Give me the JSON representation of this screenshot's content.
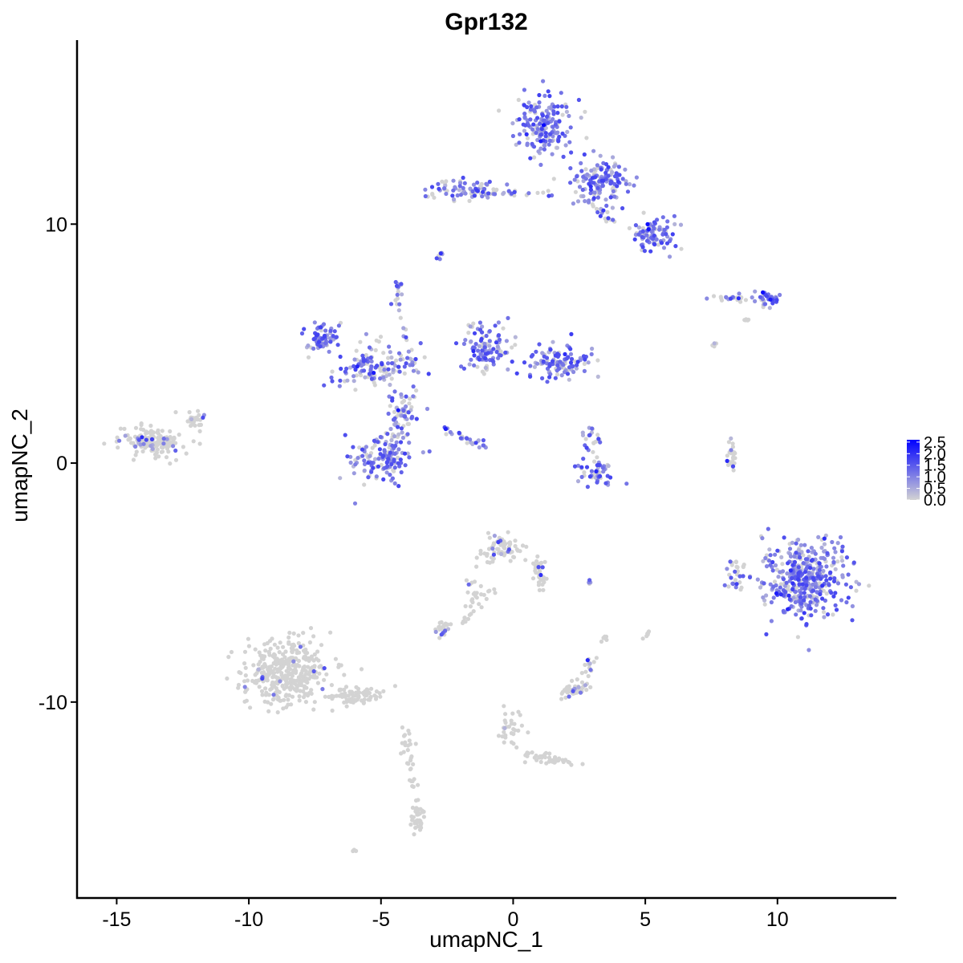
{
  "chart_data": {
    "type": "scatter",
    "title": "Gpr132",
    "xlabel": "umapNC_1",
    "ylabel": "umapNC_2",
    "xlim": [
      -16.5,
      14.5
    ],
    "ylim": [
      -18.2,
      17.7
    ],
    "x_ticks": [
      -15,
      -10,
      -5,
      0,
      5,
      10
    ],
    "x_tick_labels": [
      "-15",
      "-10",
      "-5",
      "0",
      "5",
      "10"
    ],
    "y_ticks": [
      -10,
      0,
      10
    ],
    "y_tick_labels": [
      "-10",
      "0",
      "10"
    ],
    "color_scale": {
      "low_color": "#d3d3d3",
      "high_color": "#0000ff",
      "range": [
        0,
        2.6
      ],
      "breaks": [
        0.0,
        0.5,
        1.0,
        1.5,
        2.0,
        2.5
      ],
      "break_labels": [
        "0.0",
        "0.5",
        "1.0",
        "1.5",
        "2.0",
        "2.5"
      ]
    },
    "legend_position": "right",
    "grid": false,
    "clusters": [
      {
        "cx": 1.2,
        "cy": 14.2,
        "sx": 0.9,
        "sy": 1.1,
        "n": 170,
        "expr": 0.85
      },
      {
        "cx": 3.3,
        "cy": 11.8,
        "sx": 0.9,
        "sy": 0.8,
        "n": 140,
        "expr": 0.8
      },
      {
        "cx": 5.3,
        "cy": 9.6,
        "sx": 0.7,
        "sy": 0.6,
        "n": 90,
        "expr": 0.8
      },
      {
        "cx": -1.8,
        "cy": 11.4,
        "sx": 1.3,
        "sy": 0.4,
        "n": 70,
        "expr": 0.55
      },
      {
        "cx": -2.7,
        "cy": 8.7,
        "sx": 0.15,
        "sy": 0.2,
        "n": 8,
        "expr": 0.6
      },
      {
        "cx": -7.3,
        "cy": 5.2,
        "sx": 0.5,
        "sy": 0.6,
        "n": 70,
        "expr": 0.85
      },
      {
        "cx": -5.2,
        "cy": 4.0,
        "sx": 1.2,
        "sy": 0.8,
        "n": 130,
        "expr": 0.7
      },
      {
        "cx": -1.0,
        "cy": 4.9,
        "sx": 0.8,
        "sy": 0.9,
        "n": 110,
        "expr": 0.8
      },
      {
        "cx": 1.8,
        "cy": 4.2,
        "sx": 1.0,
        "sy": 0.6,
        "n": 110,
        "expr": 0.8
      },
      {
        "cx": -5.0,
        "cy": 0.3,
        "sx": 1.0,
        "sy": 0.8,
        "n": 150,
        "expr": 0.8
      },
      {
        "cx": -4.1,
        "cy": 2.2,
        "sx": 0.5,
        "sy": 0.7,
        "n": 60,
        "expr": 0.75
      },
      {
        "cx": -4.3,
        "cy": 7.4,
        "sx": 0.15,
        "sy": 0.3,
        "n": 10,
        "expr": 0.8
      },
      {
        "cx": 3.2,
        "cy": -0.3,
        "sx": 0.7,
        "sy": 0.5,
        "n": 50,
        "expr": 0.7
      },
      {
        "cx": 3.0,
        "cy": 1.0,
        "sx": 0.3,
        "sy": 0.5,
        "n": 20,
        "expr": 0.6
      },
      {
        "cx": 8.1,
        "cy": 6.9,
        "sx": 0.6,
        "sy": 0.12,
        "n": 22,
        "expr": 0.4
      },
      {
        "cx": 9.6,
        "cy": 6.9,
        "sx": 0.35,
        "sy": 0.25,
        "n": 35,
        "expr": 0.8
      },
      {
        "cx": 11.0,
        "cy": -4.8,
        "sx": 1.3,
        "sy": 1.3,
        "n": 420,
        "expr": 0.8
      },
      {
        "cx": 8.4,
        "cy": -4.6,
        "sx": 0.3,
        "sy": 0.6,
        "n": 30,
        "expr": 0.35
      },
      {
        "cx": 8.3,
        "cy": 0.2,
        "sx": 0.15,
        "sy": 0.6,
        "n": 25,
        "expr": 0.25
      },
      {
        "cx": -13.6,
        "cy": 0.9,
        "sx": 1.0,
        "sy": 0.55,
        "n": 150,
        "expr": 0.08
      },
      {
        "cx": -12.0,
        "cy": 1.8,
        "sx": 0.4,
        "sy": 0.3,
        "n": 25,
        "expr": 0.05
      },
      {
        "cx": -8.5,
        "cy": -8.8,
        "sx": 1.3,
        "sy": 1.2,
        "n": 380,
        "expr": 0.02
      },
      {
        "cx": -6.0,
        "cy": -9.8,
        "sx": 1.0,
        "sy": 0.35,
        "n": 80,
        "expr": 0.0
      },
      {
        "cx": -3.6,
        "cy": -14.8,
        "sx": 0.2,
        "sy": 0.45,
        "n": 40,
        "expr": 0.0
      },
      {
        "cx": -4.0,
        "cy": -11.8,
        "sx": 0.2,
        "sy": 0.7,
        "n": 20,
        "expr": 0.0
      },
      {
        "cx": -0.4,
        "cy": -3.6,
        "sx": 0.6,
        "sy": 0.5,
        "n": 70,
        "expr": 0.12
      },
      {
        "cx": 1.0,
        "cy": -4.6,
        "sx": 0.25,
        "sy": 0.6,
        "n": 35,
        "expr": 0.1
      },
      {
        "cx": -2.6,
        "cy": -6.9,
        "sx": 0.35,
        "sy": 0.25,
        "n": 25,
        "expr": 0.1
      },
      {
        "cx": -1.5,
        "cy": -5.5,
        "sx": 0.3,
        "sy": 0.6,
        "n": 18,
        "expr": 0.05
      },
      {
        "cx": 2.3,
        "cy": -9.5,
        "sx": 0.5,
        "sy": 0.25,
        "n": 45,
        "expr": 0.2
      },
      {
        "cx": 2.8,
        "cy": -8.5,
        "sx": 0.25,
        "sy": 0.3,
        "n": 15,
        "expr": 0.15
      },
      {
        "cx": -0.1,
        "cy": -11.0,
        "sx": 0.4,
        "sy": 0.9,
        "n": 30,
        "expr": 0.04
      },
      {
        "cx": 1.5,
        "cy": -12.4,
        "sx": 0.8,
        "sy": 0.3,
        "n": 25,
        "expr": 0.05
      },
      {
        "cx": 5.0,
        "cy": -7.2,
        "sx": 0.12,
        "sy": 0.12,
        "n": 6,
        "expr": 0.05
      },
      {
        "cx": 3.4,
        "cy": -7.3,
        "sx": 0.15,
        "sy": 0.25,
        "n": 6,
        "expr": 0.05
      },
      {
        "cx": 2.9,
        "cy": -5.0,
        "sx": 0.3,
        "sy": 0.1,
        "n": 6,
        "expr": 0.4
      },
      {
        "cx": 7.6,
        "cy": 4.9,
        "sx": 0.12,
        "sy": 0.15,
        "n": 4,
        "expr": 0.1
      },
      {
        "cx": 8.8,
        "cy": 6.0,
        "sx": 0.15,
        "sy": 0.1,
        "n": 5,
        "expr": 0.4
      },
      {
        "cx": -6.0,
        "cy": -16.2,
        "sx": 0.08,
        "sy": 0.05,
        "n": 4,
        "expr": 0.5
      }
    ],
    "streaks": [
      {
        "x1": -2.6,
        "y1": 1.4,
        "x2": -1.1,
        "y2": 0.7,
        "n": 30,
        "expr": 0.9
      },
      {
        "x1": -4.4,
        "y1": 6.9,
        "x2": -3.6,
        "y2": 3.0,
        "n": 22,
        "expr": 0.5
      },
      {
        "x1": -1.5,
        "y1": 11.3,
        "x2": 1.5,
        "y2": 11.3,
        "n": 30,
        "expr": 0.6
      },
      {
        "x1": 2.8,
        "y1": 10.9,
        "x2": 3.7,
        "y2": 10.1,
        "n": 15,
        "expr": 0.4
      },
      {
        "x1": -0.8,
        "y1": -5.3,
        "x2": -2.1,
        "y2": -6.8,
        "n": 18,
        "expr": 0.05
      },
      {
        "x1": 0.4,
        "y1": -12.2,
        "x2": 2.3,
        "y2": -12.6,
        "n": 18,
        "expr": 0.05
      },
      {
        "x1": -3.9,
        "y1": -12.5,
        "x2": -3.7,
        "y2": -14.2,
        "n": 12,
        "expr": 0.0
      }
    ]
  }
}
